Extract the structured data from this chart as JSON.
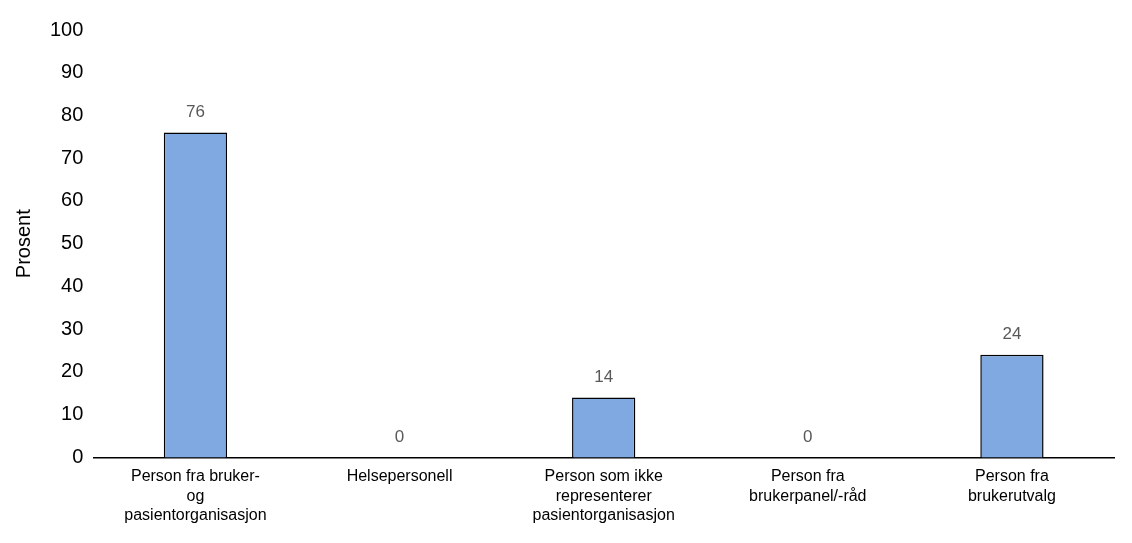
{
  "chart_data": {
    "type": "bar",
    "ylabel": "Prosent",
    "categories": [
      "Person fra bruker-\nog\npasientorganisasjon",
      "Helsepersonell",
      "Person som ikke\nrepresenterer\npasientorganisasjon",
      "Person fra\nbrukerpanel/-råd",
      "Person fra\nbrukerutvalg"
    ],
    "values": [
      76,
      0,
      14,
      0,
      24
    ],
    "color": "#7fa9e0",
    "ylim": [
      0,
      100
    ],
    "yticks": [
      0,
      10,
      20,
      30,
      40,
      50,
      60,
      70,
      80,
      90,
      100
    ],
    "grid": false,
    "legend": false,
    "data_labels": true
  }
}
